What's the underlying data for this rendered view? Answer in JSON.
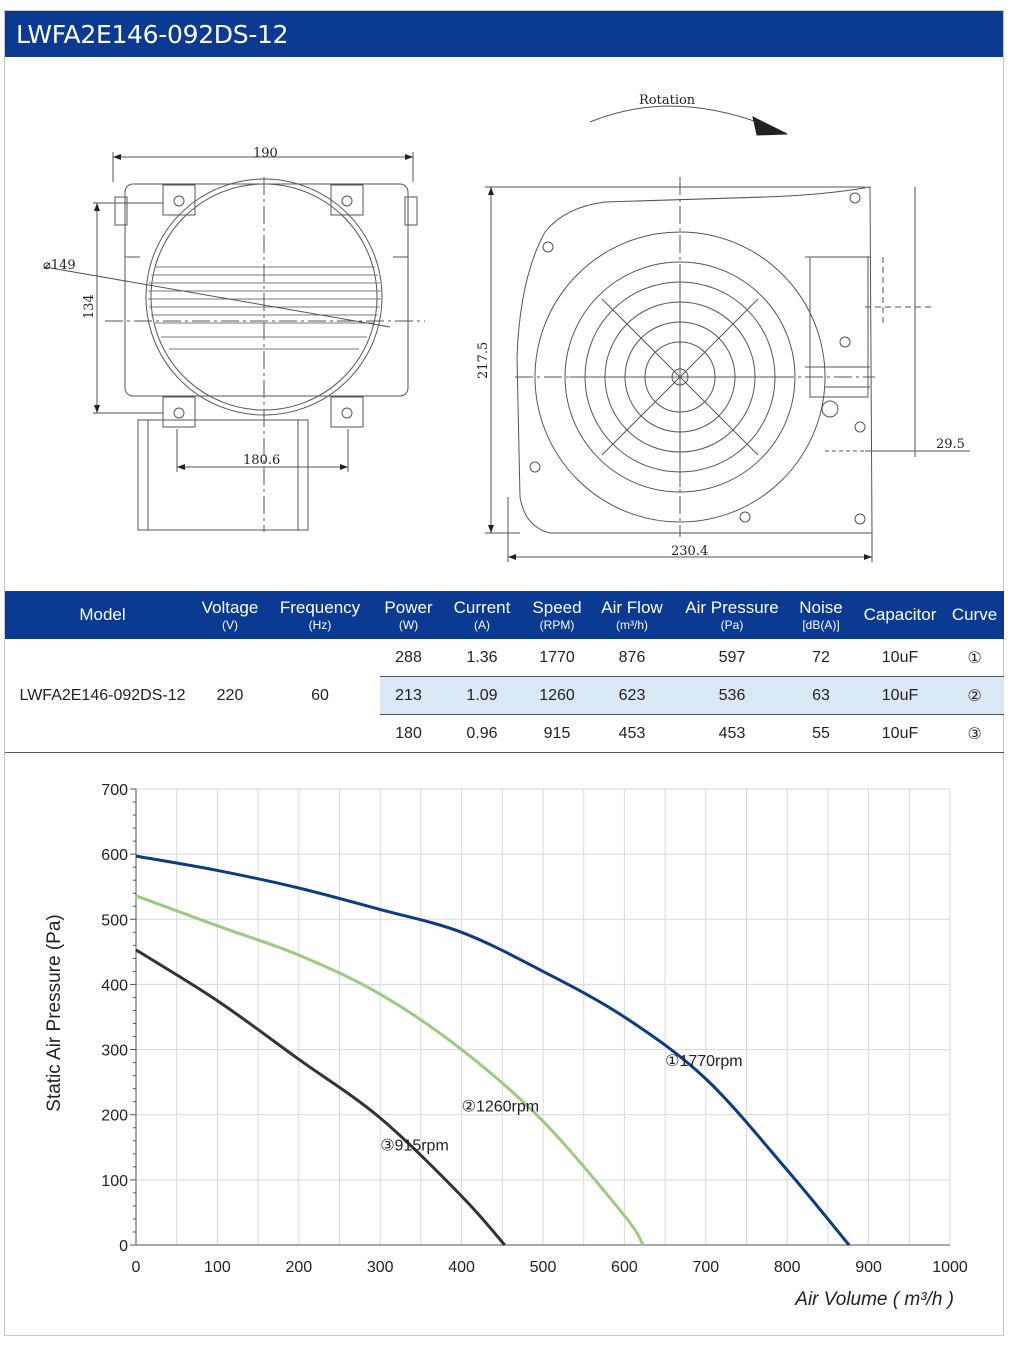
{
  "title": "LWFA2E146-092DS-12",
  "drawing": {
    "front": {
      "width_label": "190",
      "diameter_label": "⌀149",
      "height_label": "134",
      "bottom_label": "180.6"
    },
    "side": {
      "rotation_label": "Rotation",
      "height_label": "217.5",
      "offset_label": "29.5",
      "width_label": "230.4"
    }
  },
  "table": {
    "headers": [
      {
        "label": "Model",
        "unit": ""
      },
      {
        "label": "Voltage",
        "unit": "(V)"
      },
      {
        "label": "Frequency",
        "unit": "(Hz)"
      },
      {
        "label": "Power",
        "unit": "(W)"
      },
      {
        "label": "Current",
        "unit": "(A)"
      },
      {
        "label": "Speed",
        "unit": "(RPM)"
      },
      {
        "label": "Air Flow",
        "unit": "(m³/h)"
      },
      {
        "label": "Air Pressure",
        "unit": "(Pa)"
      },
      {
        "label": "Noise",
        "unit": "[dB(A)]"
      },
      {
        "label": "Capacitor",
        "unit": ""
      },
      {
        "label": "Curve",
        "unit": ""
      }
    ],
    "model": "LWFA2E146-092DS-12",
    "voltage": "220",
    "frequency": "60",
    "rows": [
      {
        "power": "288",
        "current": "1.36",
        "speed": "1770",
        "air_flow": "876",
        "air_pressure": "597",
        "noise": "72",
        "capacitor": "10uF",
        "curve": "①"
      },
      {
        "power": "213",
        "current": "1.09",
        "speed": "1260",
        "air_flow": "623",
        "air_pressure": "536",
        "noise": "63",
        "capacitor": "10uF",
        "curve": "②"
      },
      {
        "power": "180",
        "current": "0.96",
        "speed": "915",
        "air_flow": "453",
        "air_pressure": "453",
        "noise": "55",
        "capacitor": "10uF",
        "curve": "③"
      }
    ]
  },
  "chart_data": {
    "type": "line",
    "xlabel": "Air Volume ( m³/h )",
    "ylabel": "Static Air Pressure  (Pa)",
    "xlim": [
      0,
      1000
    ],
    "ylim": [
      0,
      700
    ],
    "xticks": [
      "0",
      "100",
      "200",
      "300",
      "400",
      "500",
      "600",
      "700",
      "800",
      "900",
      "1000"
    ],
    "yticks": [
      "0",
      "100",
      "200",
      "300",
      "400",
      "500",
      "600",
      "700"
    ],
    "grid": true,
    "series": [
      {
        "name": "①1770rpm",
        "color": "#0d3b82",
        "x": [
          0,
          100,
          200,
          300,
          400,
          500,
          600,
          700,
          800,
          876
        ],
        "y": [
          597,
          575,
          548,
          515,
          480,
          420,
          350,
          255,
          115,
          0
        ]
      },
      {
        "name": "②1260rpm",
        "color": "#9dca83",
        "x": [
          0,
          100,
          200,
          300,
          400,
          500,
          600,
          623
        ],
        "y": [
          536,
          490,
          445,
          385,
          300,
          190,
          45,
          0
        ]
      },
      {
        "name": "③915rpm",
        "color": "#333333",
        "x": [
          0,
          100,
          200,
          300,
          400,
          453
        ],
        "y": [
          453,
          375,
          285,
          195,
          75,
          0
        ]
      }
    ]
  }
}
